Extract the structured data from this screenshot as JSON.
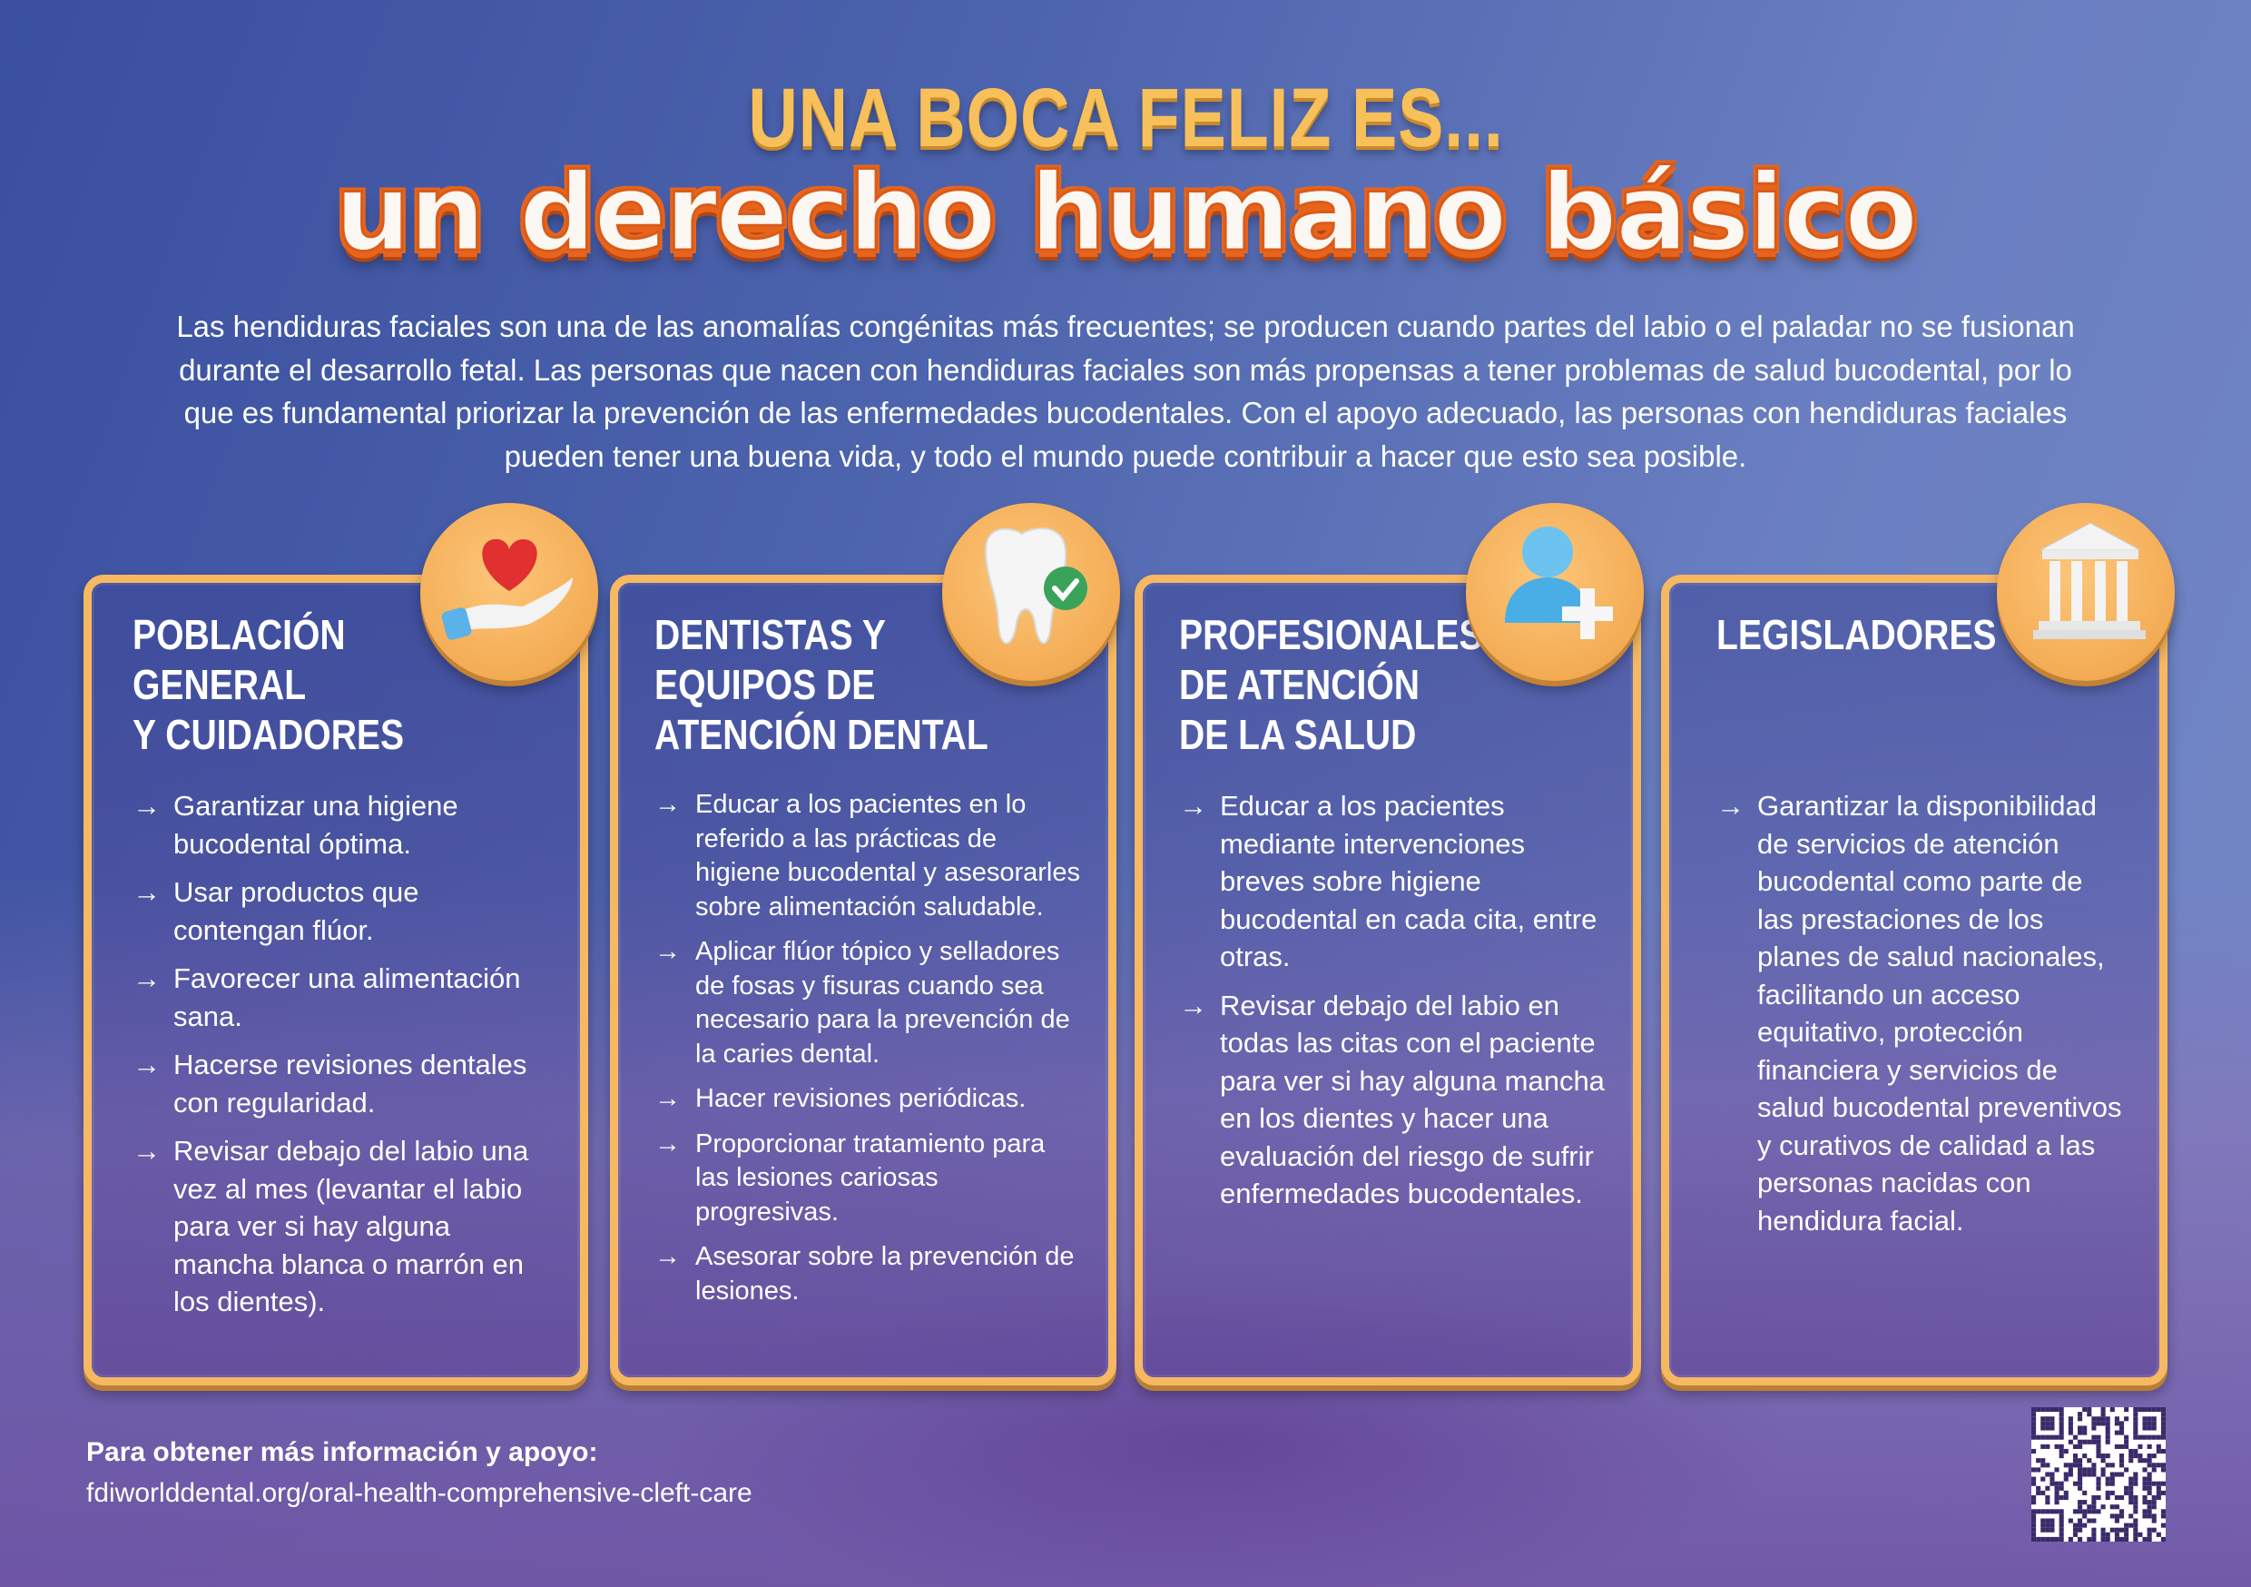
{
  "title": {
    "line1": "UNA BOCA FELIZ ES...",
    "line2": "un derecho humano básico"
  },
  "intro": "Las hendiduras faciales son una de las anomalías congénitas más frecuentes; se producen cuando partes del labio o el paladar no se fusionan durante el desarrollo fetal. Las personas que nacen con hendiduras faciales son más propensas a tener problemas de salud bucodental, por lo que es fundamental priorizar la prevención de las enfermedades bucodentales. Con el apoyo adecuado, las personas con hendiduras faciales pueden tener una buena vida, y todo el mundo puede contribuir a hacer que esto sea posible.",
  "arrow": "→",
  "cards": [
    {
      "icon": "heart-in-hand-icon",
      "heading": "Población\ngeneral\ny cuidadores",
      "items": [
        "Garantizar una higiene bucodental óptima.",
        "Usar productos que contengan flúor.",
        "Favorecer una alimentación sana.",
        "Hacerse revisiones dentales con regularidad.",
        "Revisar debajo del labio una vez al mes (levantar el labio para ver si hay alguna mancha blanca o marrón en los dientes)."
      ]
    },
    {
      "icon": "tooth-check-icon",
      "heading": "Dentistas y\nequipos de\natención dental",
      "items": [
        "Educar a los pacientes en lo referido a las prácticas de higiene bucodental y asesorarles sobre alimentación saludable.",
        "Aplicar flúor tópico y selladores de fosas y fisuras cuando sea necesario para la prevención de la caries dental.",
        "Hacer revisiones periódicas.",
        "Proporcionar tratamiento para las lesiones cariosas progresivas.",
        "Asesorar sobre la prevención de lesiones."
      ]
    },
    {
      "icon": "person-plus-icon",
      "heading": "Profesionales\nde atención\nde la salud",
      "items": [
        "Educar a los pacientes mediante intervenciones breves sobre higiene bucodental en cada cita, entre otras.",
        "Revisar debajo del labio en todas las citas con el paciente para ver si hay alguna mancha en los dientes y hacer una evaluación del riesgo de sufrir enfermedades bucodentales."
      ]
    },
    {
      "icon": "government-building-icon",
      "heading": "Legisladores",
      "items": [
        "Garantizar la disponibilidad de servicios de atención bucodental como parte de las prestaciones de los planes de salud nacionales, facilitando un acceso equitativo, protección financiera y servicios de salud bucodental preventivos y curativos de calidad a las personas nacidas con hendidura facial."
      ]
    }
  ],
  "footer": {
    "label": "Para obtener más información y apoyo:",
    "link": "fdiworlddental.org/oral-health-comprehensive-cleft-care"
  },
  "colors": {
    "title": "#f8c05a",
    "subtitle_outline": "#e8641c",
    "card_border": "#f7b862"
  }
}
